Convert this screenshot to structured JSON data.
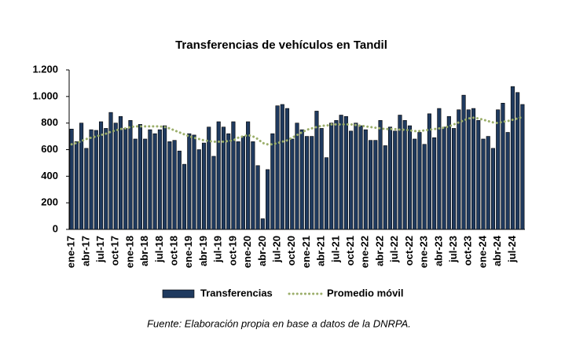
{
  "chart_data": {
    "type": "bar_line",
    "title": "Transferencias de vehículos en Tandil",
    "source": "Fuente: Elaboración propia en base a datos de la DNRPA.",
    "categories": [
      "ene-17",
      null,
      null,
      "abr-17",
      null,
      null,
      "jul-17",
      null,
      null,
      "oct-17",
      null,
      null,
      "ene-18",
      null,
      null,
      "abr-18",
      null,
      null,
      "jul-18",
      null,
      null,
      "oct-18",
      null,
      null,
      "ene-19",
      null,
      null,
      "abr-19",
      null,
      null,
      "jul-19",
      null,
      null,
      "oct-19",
      null,
      null,
      "ene-20",
      null,
      null,
      "abr-20",
      null,
      null,
      "jul-20",
      null,
      null,
      "oct-20",
      null,
      null,
      "ene-21",
      null,
      null,
      "abr-21",
      null,
      null,
      "jul-21",
      null,
      null,
      "oct-21",
      null,
      null,
      "ene-22",
      null,
      null,
      "abr-22",
      null,
      null,
      "jul-22",
      null,
      null,
      "oct-22",
      null,
      null,
      "ene-23",
      null,
      null,
      "abr-23",
      null,
      null,
      "jul-23",
      null,
      null,
      "oct-23",
      null,
      null,
      "ene-24",
      null,
      null,
      "abr-24",
      null,
      null,
      "jul-24",
      null,
      null
    ],
    "series": [
      {
        "name": "Transferencias",
        "type": "bar",
        "color": "#1f3a5f",
        "values": [
          755,
          660,
          800,
          610,
          750,
          745,
          810,
          760,
          880,
          800,
          850,
          760,
          820,
          680,
          790,
          680,
          750,
          720,
          750,
          780,
          660,
          670,
          590,
          490,
          720,
          710,
          600,
          650,
          770,
          550,
          810,
          770,
          720,
          810,
          660,
          700,
          810,
          660,
          480,
          80,
          450,
          720,
          930,
          940,
          910,
          680,
          800,
          750,
          700,
          700,
          890,
          760,
          540,
          800,
          820,
          860,
          850,
          740,
          800,
          780,
          750,
          670,
          670,
          820,
          630,
          770,
          740,
          860,
          820,
          780,
          680,
          730,
          640,
          870,
          690,
          910,
          770,
          850,
          760,
          900,
          1010,
          900,
          910,
          820,
          680,
          700,
          610,
          900,
          950,
          730,
          1075,
          1030,
          940
        ]
      },
      {
        "name": "Promedio móvil",
        "type": "line",
        "color": "#9bae6a",
        "values": [
          640,
          650,
          665,
          680,
          690,
          700,
          710,
          720,
          735,
          745,
          755,
          760,
          770,
          775,
          775,
          775,
          775,
          775,
          775,
          770,
          760,
          745,
          730,
          715,
          700,
          690,
          680,
          670,
          665,
          660,
          660,
          660,
          665,
          670,
          690,
          700,
          710,
          700,
          680,
          650,
          640,
          640,
          650,
          660,
          670,
          690,
          710,
          730,
          750,
          760,
          770,
          780,
          780,
          790,
          790,
          790,
          790,
          790,
          785,
          780,
          775,
          770,
          765,
          760,
          755,
          755,
          755,
          750,
          750,
          745,
          740,
          740,
          745,
          750,
          755,
          760,
          765,
          775,
          790,
          805,
          820,
          835,
          840,
          835,
          825,
          815,
          805,
          800,
          810,
          815,
          825,
          835,
          845
        ]
      }
    ],
    "ylim": [
      0,
      1200
    ],
    "yticks": [
      0,
      200,
      400,
      600,
      800,
      {
        "value": 1000,
        "label": "1.000"
      },
      {
        "value": 1200,
        "label": "1.200"
      }
    ],
    "legend": "bottom"
  }
}
